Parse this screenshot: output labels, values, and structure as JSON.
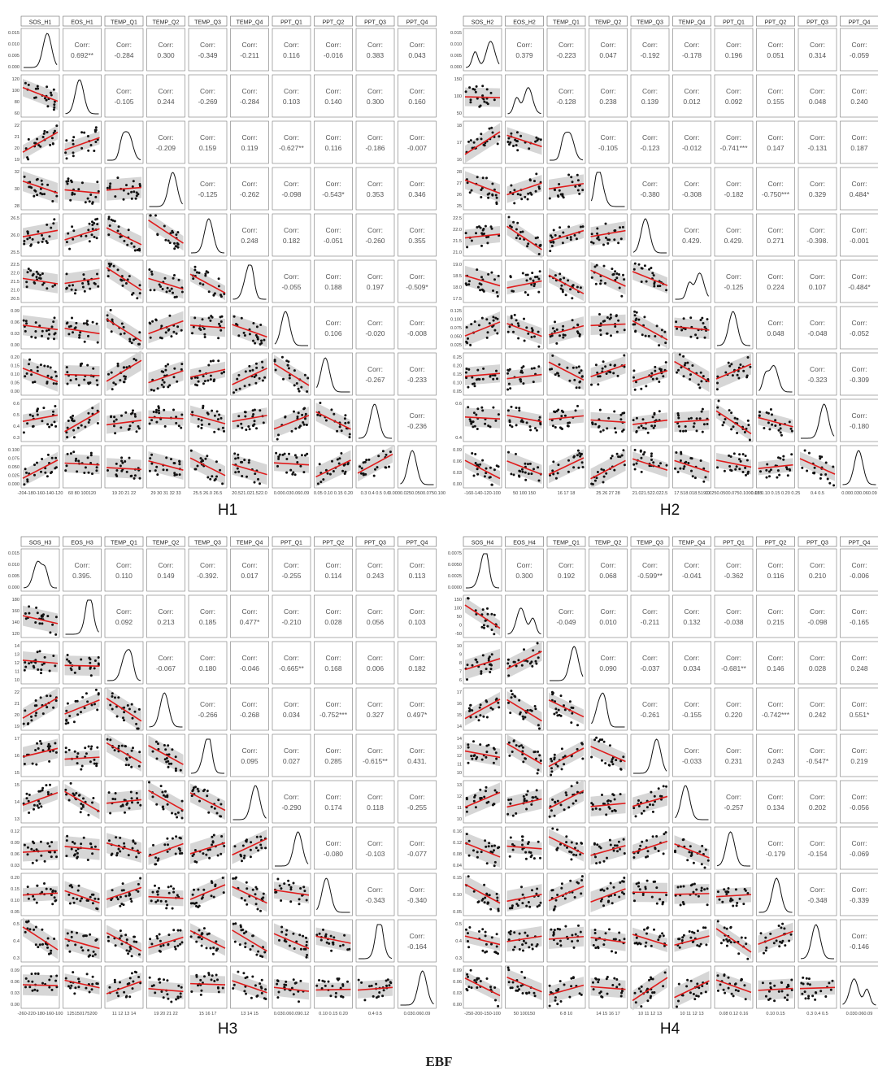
{
  "figure_label": "EBF",
  "corr_label": "Corr:",
  "chart_data": [
    {
      "type": "scatter",
      "caption": "H1",
      "variables": [
        "SOS_H1",
        "EOS_H1",
        "TEMP_Q1",
        "TEMP_Q2",
        "TEMP_Q3",
        "TEMP_Q4",
        "PPT_Q1",
        "PPT_Q2",
        "PPT_Q3",
        "PPT_Q4"
      ],
      "y_ticks": [
        [
          "0.015",
          "0.010",
          "0.005",
          "0.000"
        ],
        [
          "120",
          "100",
          "80",
          "60"
        ],
        [
          "22",
          "21",
          "20",
          "19"
        ],
        [
          "32",
          "30",
          "28"
        ],
        [
          "26.5",
          "26.0",
          "25.5"
        ],
        [
          "22.5",
          "22.0",
          "21.5",
          "21.0",
          "20.5"
        ],
        [
          "0.09",
          "0.06",
          "0.03",
          "0.00"
        ],
        [
          "0.20",
          "0.15",
          "0.10",
          "0.05",
          "0.00"
        ],
        [
          "0.6",
          "0.5",
          "0.4",
          "0.3"
        ],
        [
          "0.100",
          "0.075",
          "0.050",
          "0.025",
          "0.000"
        ]
      ],
      "x_ticks": [
        "-204-180-160-140-120",
        "60 80 100120",
        "19 20 21 22",
        "29 30 31 32 33",
        "25.5 26.0 26.5",
        "20.521.021.522.0",
        "0.000.030.060.09",
        "0.05 0.10 0.15 0.20",
        "0.3 0.4 0.5 0.6",
        "0.0000.0250.0500.0750.100"
      ],
      "correlations": [
        [
          "0.692**",
          "-0.284",
          "0.300",
          "-0.349",
          "-0.211",
          "0.116",
          "-0.016",
          "0.383",
          "0.043"
        ],
        [
          "-0.105",
          "0.244",
          "-0.269",
          "-0.284",
          "0.103",
          "0.140",
          "0.300",
          "0.160"
        ],
        [
          "-0.209",
          "0.159",
          "0.119",
          "-0.627**",
          "0.116",
          "-0.186",
          "-0.007"
        ],
        [
          "-0.125",
          "-0.262",
          "-0.098",
          "-0.543*",
          "0.353",
          "0.346"
        ],
        [
          "0.248",
          "0.182",
          "-0.051",
          "-0.260",
          "0.355"
        ],
        [
          "-0.055",
          "0.188",
          "0.197",
          "-0.509*"
        ],
        [
          "0.106",
          "-0.020",
          "-0.008"
        ],
        [
          "-0.267",
          "-0.233"
        ],
        [
          "-0.236"
        ]
      ]
    },
    {
      "type": "scatter",
      "caption": "H2",
      "variables": [
        "SOS_H2",
        "EOS_H2",
        "TEMP_Q1",
        "TEMP_Q2",
        "TEMP_Q3",
        "TEMP_Q4",
        "PPT_Q1",
        "PPT_Q2",
        "PPT_Q3",
        "PPT_Q4"
      ],
      "y_ticks": [
        [
          "0.015",
          "0.010",
          "0.005",
          "0.000"
        ],
        [
          "150",
          "100",
          "50"
        ],
        [
          "18",
          "17",
          "16"
        ],
        [
          "28",
          "27",
          "26",
          "25"
        ],
        [
          "22.5",
          "22.0",
          "21.5",
          "21.0"
        ],
        [
          "19.0",
          "18.5",
          "18.0",
          "17.5"
        ],
        [
          "0.125",
          "0.100",
          "0.075",
          "0.050",
          "0.025"
        ],
        [
          "0.25",
          "0.20",
          "0.15",
          "0.10",
          "0.05"
        ],
        [
          "0.6",
          "0.4"
        ],
        [
          "0.09",
          "0.06",
          "0.03",
          "0.00"
        ]
      ],
      "x_ticks": [
        "-160-140-120-100",
        "50 100 150",
        "16 17 18",
        "25 26 27 28",
        "21.021.522.022.5",
        "17.518.018.519.0",
        "0.0250.0500.0750.1000.125",
        "0.05 0.10 0.15 0.20 0.25",
        "0.4 0.5",
        "0.000.030.060.09"
      ],
      "correlations": [
        [
          "0.379",
          "-0.223",
          "0.047",
          "-0.192",
          "-0.178",
          "0.196",
          "0.051",
          "0.314",
          "-0.059"
        ],
        [
          "-0.128",
          "0.238",
          "0.139",
          "0.012",
          "0.092",
          "0.155",
          "0.048",
          "0.240"
        ],
        [
          "-0.105",
          "-0.123",
          "-0.012",
          "-0.741***",
          "0.147",
          "-0.131",
          "0.187"
        ],
        [
          "-0.380",
          "-0.308",
          "-0.182",
          "-0.750***",
          "0.329",
          "0.484*"
        ],
        [
          "0.429.",
          "0.429.",
          "0.271",
          "-0.398.",
          "-0.001"
        ],
        [
          "-0.125",
          "0.224",
          "0.107",
          "-0.484*"
        ],
        [
          "0.048",
          "-0.048",
          "-0.052"
        ],
        [
          "-0.323",
          "-0.309"
        ],
        [
          "-0.180"
        ]
      ]
    },
    {
      "type": "scatter",
      "caption": "H3",
      "variables": [
        "SOS_H3",
        "EOS_H3",
        "TEMP_Q1",
        "TEMP_Q2",
        "TEMP_Q3",
        "TEMP_Q4",
        "PPT_Q1",
        "PPT_Q2",
        "PPT_Q3",
        "PPT_Q4"
      ],
      "y_ticks": [
        [
          "0.015",
          "0.010",
          "0.005",
          "0.000"
        ],
        [
          "180",
          "160",
          "140",
          "120"
        ],
        [
          "14",
          "13",
          "12",
          "11",
          "10"
        ],
        [
          "22",
          "21",
          "20",
          "19"
        ],
        [
          "17",
          "16",
          "15"
        ],
        [
          "15",
          "14",
          "13"
        ],
        [
          "0.12",
          "0.09",
          "0.06",
          "0.03"
        ],
        [
          "0.20",
          "0.15",
          "0.10",
          "0.05"
        ],
        [
          "0.5",
          "0.4",
          "0.3"
        ],
        [
          "0.09",
          "0.06",
          "0.03",
          "0.00"
        ]
      ],
      "x_ticks": [
        "-260-220-180-160-100",
        "125150175200",
        "11 12 13 14",
        "19 20 21 22",
        "15 16 17",
        "13 14 15",
        "0.030.060.090.12",
        "0.10 0.15 0.20",
        "0.4 0.5",
        "0.030.060.09"
      ],
      "correlations": [
        [
          "0.395.",
          "0.110",
          "0.149",
          "-0.392.",
          "0.017",
          "-0.255",
          "0.114",
          "0.243",
          "0.113"
        ],
        [
          "0.092",
          "0.213",
          "0.185",
          "0.477*",
          "-0.210",
          "0.028",
          "0.056",
          "0.103"
        ],
        [
          "-0.067",
          "0.180",
          "-0.046",
          "-0.665**",
          "0.168",
          "0.006",
          "0.182"
        ],
        [
          "-0.266",
          "-0.268",
          "0.034",
          "-0.752***",
          "0.327",
          "0.497*"
        ],
        [
          "0.095",
          "0.027",
          "0.285",
          "-0.615**",
          "0.431."
        ],
        [
          "-0.290",
          "0.174",
          "0.118",
          "-0.255"
        ],
        [
          "-0.080",
          "-0.103",
          "-0.077"
        ],
        [
          "-0.343",
          "-0.340"
        ],
        [
          "-0.164"
        ]
      ]
    },
    {
      "type": "scatter",
      "caption": "H4",
      "variables": [
        "SOS_H4",
        "EOS_H4",
        "TEMP_Q1",
        "TEMP_Q2",
        "TEMP_Q3",
        "TEMP_Q4",
        "PPT_Q1",
        "PPT_Q2",
        "PPT_Q3",
        "PPT_Q4"
      ],
      "y_ticks": [
        [
          "0.0075",
          "0.0050",
          "0.0025",
          "0.0000"
        ],
        [
          "150",
          "100",
          "50",
          "0",
          "-50"
        ],
        [
          "10",
          "9",
          "8",
          "7",
          "6"
        ],
        [
          "17",
          "16",
          "15",
          "14"
        ],
        [
          "14",
          "13",
          "12",
          "11",
          "10"
        ],
        [
          "13",
          "12",
          "11",
          "10"
        ],
        [
          "0.16",
          "0.12",
          "0.08",
          "0.04"
        ],
        [
          "0.15",
          "0.10",
          "0.05"
        ],
        [
          "0.5",
          "0.4",
          "0.3"
        ],
        [
          "0.09",
          "0.06",
          "0.03",
          "0.00"
        ]
      ],
      "x_ticks": [
        "-250-200-150-100",
        "50 100150",
        "6 8 10",
        "14 15 16 17",
        "10 11 12 13",
        "10 11 12 13",
        "0.08 0.12 0.16",
        "0.10 0.15",
        "0.3 0.4 0.5",
        "0.030.060.09"
      ],
      "correlations": [
        [
          "0.300",
          "0.192",
          "0.068",
          "-0.599**",
          "-0.041",
          "-0.362",
          "0.116",
          "0.210",
          "-0.006"
        ],
        [
          "-0.049",
          "0.010",
          "-0.211",
          "0.132",
          "-0.038",
          "0.215",
          "-0.098",
          "-0.165"
        ],
        [
          "0.090",
          "-0.037",
          "0.034",
          "-0.681**",
          "0.146",
          "0.028",
          "0.248"
        ],
        [
          "-0.261",
          "-0.155",
          "0.220",
          "-0.742***",
          "0.242",
          "0.551*"
        ],
        [
          "-0.033",
          "0.231",
          "0.243",
          "-0.547*",
          "0.219"
        ],
        [
          "-0.257",
          "0.134",
          "0.202",
          "-0.056"
        ],
        [
          "-0.179",
          "-0.154",
          "-0.069"
        ],
        [
          "-0.348",
          "-0.339"
        ],
        [
          "-0.146"
        ]
      ]
    }
  ]
}
